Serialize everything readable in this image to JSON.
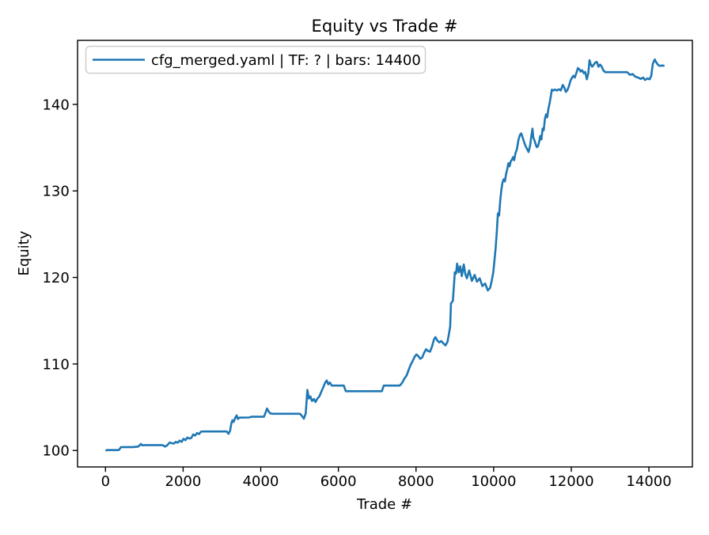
{
  "figure": {
    "title": "Equity vs Trade #"
  },
  "axes": {
    "xlabel": "Trade #",
    "ylabel": "Equity"
  },
  "legend": {
    "label": "cfg_merged.yaml | TF: ? | bars: 14400",
    "position": "upper left"
  },
  "colors": {
    "line": "#1f77b4",
    "spine": "#000000",
    "legend_edge": "#cccccc",
    "background": "#ffffff",
    "text": "#000000"
  },
  "chart_data": {
    "type": "line",
    "title": "Equity vs Trade #",
    "xlabel": "Trade #",
    "ylabel": "Equity",
    "grid": false,
    "legend_position": "upper left",
    "xlim": [
      -720,
      15120
    ],
    "ylim": [
      98.1,
      147.4
    ],
    "x_ticks": [
      0,
      2000,
      4000,
      6000,
      8000,
      10000,
      12000,
      14000
    ],
    "y_ticks": [
      100,
      110,
      120,
      130,
      140
    ],
    "series": [
      {
        "name": "cfg_merged.yaml | TF: ? | bars: 14400",
        "color": "#1f77b4",
        "points": [
          [
            0,
            100.0
          ],
          [
            50,
            100.05
          ],
          [
            340,
            100.05
          ],
          [
            370,
            100.2
          ],
          [
            400,
            100.4
          ],
          [
            700,
            100.4
          ],
          [
            840,
            100.45
          ],
          [
            880,
            100.6
          ],
          [
            910,
            100.75
          ],
          [
            950,
            100.6
          ],
          [
            1000,
            100.62
          ],
          [
            1470,
            100.62
          ],
          [
            1530,
            100.45
          ],
          [
            1590,
            100.6
          ],
          [
            1650,
            100.92
          ],
          [
            1700,
            100.85
          ],
          [
            1760,
            100.8
          ],
          [
            1810,
            101.0
          ],
          [
            1860,
            100.9
          ],
          [
            1910,
            101.15
          ],
          [
            1960,
            101.0
          ],
          [
            2010,
            101.35
          ],
          [
            2060,
            101.2
          ],
          [
            2110,
            101.5
          ],
          [
            2160,
            101.38
          ],
          [
            2210,
            101.45
          ],
          [
            2260,
            101.85
          ],
          [
            2310,
            101.72
          ],
          [
            2360,
            102.02
          ],
          [
            2410,
            101.9
          ],
          [
            2460,
            102.18
          ],
          [
            2520,
            102.2
          ],
          [
            3120,
            102.2
          ],
          [
            3170,
            101.92
          ],
          [
            3210,
            102.3
          ],
          [
            3240,
            103.1
          ],
          [
            3270,
            103.5
          ],
          [
            3300,
            103.3
          ],
          [
            3340,
            103.75
          ],
          [
            3380,
            104.05
          ],
          [
            3410,
            103.65
          ],
          [
            3450,
            103.8
          ],
          [
            3700,
            103.82
          ],
          [
            3760,
            103.9
          ],
          [
            4080,
            103.9
          ],
          [
            4130,
            104.45
          ],
          [
            4160,
            104.85
          ],
          [
            4200,
            104.55
          ],
          [
            4240,
            104.3
          ],
          [
            4300,
            104.25
          ],
          [
            5010,
            104.25
          ],
          [
            5060,
            104.0
          ],
          [
            5110,
            103.68
          ],
          [
            5160,
            104.3
          ],
          [
            5200,
            107.0
          ],
          [
            5240,
            106.0
          ],
          [
            5280,
            106.25
          ],
          [
            5320,
            105.72
          ],
          [
            5370,
            105.95
          ],
          [
            5410,
            105.6
          ],
          [
            5460,
            106.0
          ],
          [
            5510,
            106.25
          ],
          [
            5560,
            106.8
          ],
          [
            5610,
            107.3
          ],
          [
            5660,
            107.85
          ],
          [
            5700,
            108.1
          ],
          [
            5740,
            107.65
          ],
          [
            5780,
            107.85
          ],
          [
            5830,
            107.5
          ],
          [
            6140,
            107.5
          ],
          [
            6190,
            106.85
          ],
          [
            7120,
            106.85
          ],
          [
            7170,
            107.5
          ],
          [
            7580,
            107.5
          ],
          [
            7640,
            107.8
          ],
          [
            7700,
            108.3
          ],
          [
            7760,
            108.7
          ],
          [
            7810,
            109.3
          ],
          [
            7860,
            109.9
          ],
          [
            7910,
            110.3
          ],
          [
            7960,
            110.8
          ],
          [
            8010,
            111.1
          ],
          [
            8060,
            110.9
          ],
          [
            8110,
            110.6
          ],
          [
            8160,
            110.75
          ],
          [
            8210,
            111.3
          ],
          [
            8260,
            111.7
          ],
          [
            8310,
            111.5
          ],
          [
            8360,
            111.42
          ],
          [
            8410,
            112.0
          ],
          [
            8460,
            112.8
          ],
          [
            8500,
            113.1
          ],
          [
            8550,
            112.7
          ],
          [
            8600,
            112.5
          ],
          [
            8650,
            112.65
          ],
          [
            8700,
            112.4
          ],
          [
            8760,
            112.15
          ],
          [
            8810,
            112.55
          ],
          [
            8850,
            113.5
          ],
          [
            8880,
            114.3
          ],
          [
            8900,
            117.0
          ],
          [
            8950,
            117.3
          ],
          [
            8975,
            119.0
          ],
          [
            9000,
            120.6
          ],
          [
            9030,
            120.45
          ],
          [
            9060,
            121.6
          ],
          [
            9100,
            120.6
          ],
          [
            9140,
            121.3
          ],
          [
            9180,
            120.15
          ],
          [
            9230,
            121.5
          ],
          [
            9270,
            120.4
          ],
          [
            9310,
            119.9
          ],
          [
            9370,
            120.8
          ],
          [
            9440,
            119.6
          ],
          [
            9510,
            120.3
          ],
          [
            9570,
            119.5
          ],
          [
            9640,
            119.9
          ],
          [
            9710,
            119.0
          ],
          [
            9780,
            119.3
          ],
          [
            9850,
            118.5
          ],
          [
            9910,
            118.8
          ],
          [
            9950,
            119.6
          ],
          [
            9990,
            120.6
          ],
          [
            10020,
            121.9
          ],
          [
            10050,
            123.3
          ],
          [
            10080,
            125.2
          ],
          [
            10110,
            127.4
          ],
          [
            10140,
            127.15
          ],
          [
            10170,
            128.9
          ],
          [
            10200,
            130.2
          ],
          [
            10230,
            131.0
          ],
          [
            10260,
            131.35
          ],
          [
            10290,
            131.1
          ],
          [
            10320,
            131.95
          ],
          [
            10350,
            132.5
          ],
          [
            10380,
            133.2
          ],
          [
            10410,
            132.85
          ],
          [
            10440,
            133.4
          ],
          [
            10470,
            133.6
          ],
          [
            10500,
            133.9
          ],
          [
            10530,
            133.55
          ],
          [
            10560,
            134.3
          ],
          [
            10600,
            134.85
          ],
          [
            10640,
            135.9
          ],
          [
            10680,
            136.5
          ],
          [
            10710,
            136.65
          ],
          [
            10740,
            136.3
          ],
          [
            10780,
            135.7
          ],
          [
            10820,
            135.2
          ],
          [
            10860,
            134.85
          ],
          [
            10900,
            134.5
          ],
          [
            10940,
            135.3
          ],
          [
            10970,
            136.3
          ],
          [
            11000,
            137.2
          ],
          [
            11020,
            136.2
          ],
          [
            11050,
            135.85
          ],
          [
            11080,
            135.45
          ],
          [
            11110,
            135.05
          ],
          [
            11140,
            135.15
          ],
          [
            11170,
            135.6
          ],
          [
            11200,
            136.35
          ],
          [
            11230,
            135.95
          ],
          [
            11260,
            137.2
          ],
          [
            11290,
            137.0
          ],
          [
            11320,
            138.3
          ],
          [
            11350,
            138.85
          ],
          [
            11380,
            138.5
          ],
          [
            11410,
            139.45
          ],
          [
            11440,
            140.1
          ],
          [
            11470,
            140.9
          ],
          [
            11500,
            141.7
          ],
          [
            11540,
            141.6
          ],
          [
            11580,
            141.72
          ],
          [
            11630,
            141.6
          ],
          [
            11680,
            141.75
          ],
          [
            11730,
            141.62
          ],
          [
            11780,
            142.25
          ],
          [
            11820,
            141.95
          ],
          [
            11860,
            141.45
          ],
          [
            11900,
            141.65
          ],
          [
            11940,
            142.1
          ],
          [
            11980,
            142.75
          ],
          [
            12010,
            143.0
          ],
          [
            12050,
            143.3
          ],
          [
            12090,
            143.1
          ],
          [
            12130,
            143.6
          ],
          [
            12170,
            144.2
          ],
          [
            12210,
            144.05
          ],
          [
            12240,
            143.8
          ],
          [
            12280,
            143.95
          ],
          [
            12320,
            143.6
          ],
          [
            12360,
            143.75
          ],
          [
            12400,
            142.9
          ],
          [
            12440,
            143.6
          ],
          [
            12470,
            145.1
          ],
          [
            12500,
            144.65
          ],
          [
            12540,
            144.35
          ],
          [
            12580,
            144.6
          ],
          [
            12620,
            144.85
          ],
          [
            12660,
            144.9
          ],
          [
            12700,
            144.35
          ],
          [
            12740,
            144.6
          ],
          [
            12780,
            144.4
          ],
          [
            12830,
            143.9
          ],
          [
            12880,
            143.72
          ],
          [
            13440,
            143.72
          ],
          [
            13510,
            143.42
          ],
          [
            13580,
            143.5
          ],
          [
            13650,
            143.2
          ],
          [
            13720,
            143.1
          ],
          [
            13790,
            142.95
          ],
          [
            13850,
            143.1
          ],
          [
            13900,
            142.82
          ],
          [
            13960,
            143.0
          ],
          [
            14020,
            142.9
          ],
          [
            14060,
            143.3
          ],
          [
            14100,
            144.7
          ],
          [
            14150,
            145.2
          ],
          [
            14190,
            144.85
          ],
          [
            14240,
            144.55
          ],
          [
            14290,
            144.45
          ],
          [
            14340,
            144.5
          ],
          [
            14400,
            144.45
          ]
        ]
      }
    ]
  }
}
